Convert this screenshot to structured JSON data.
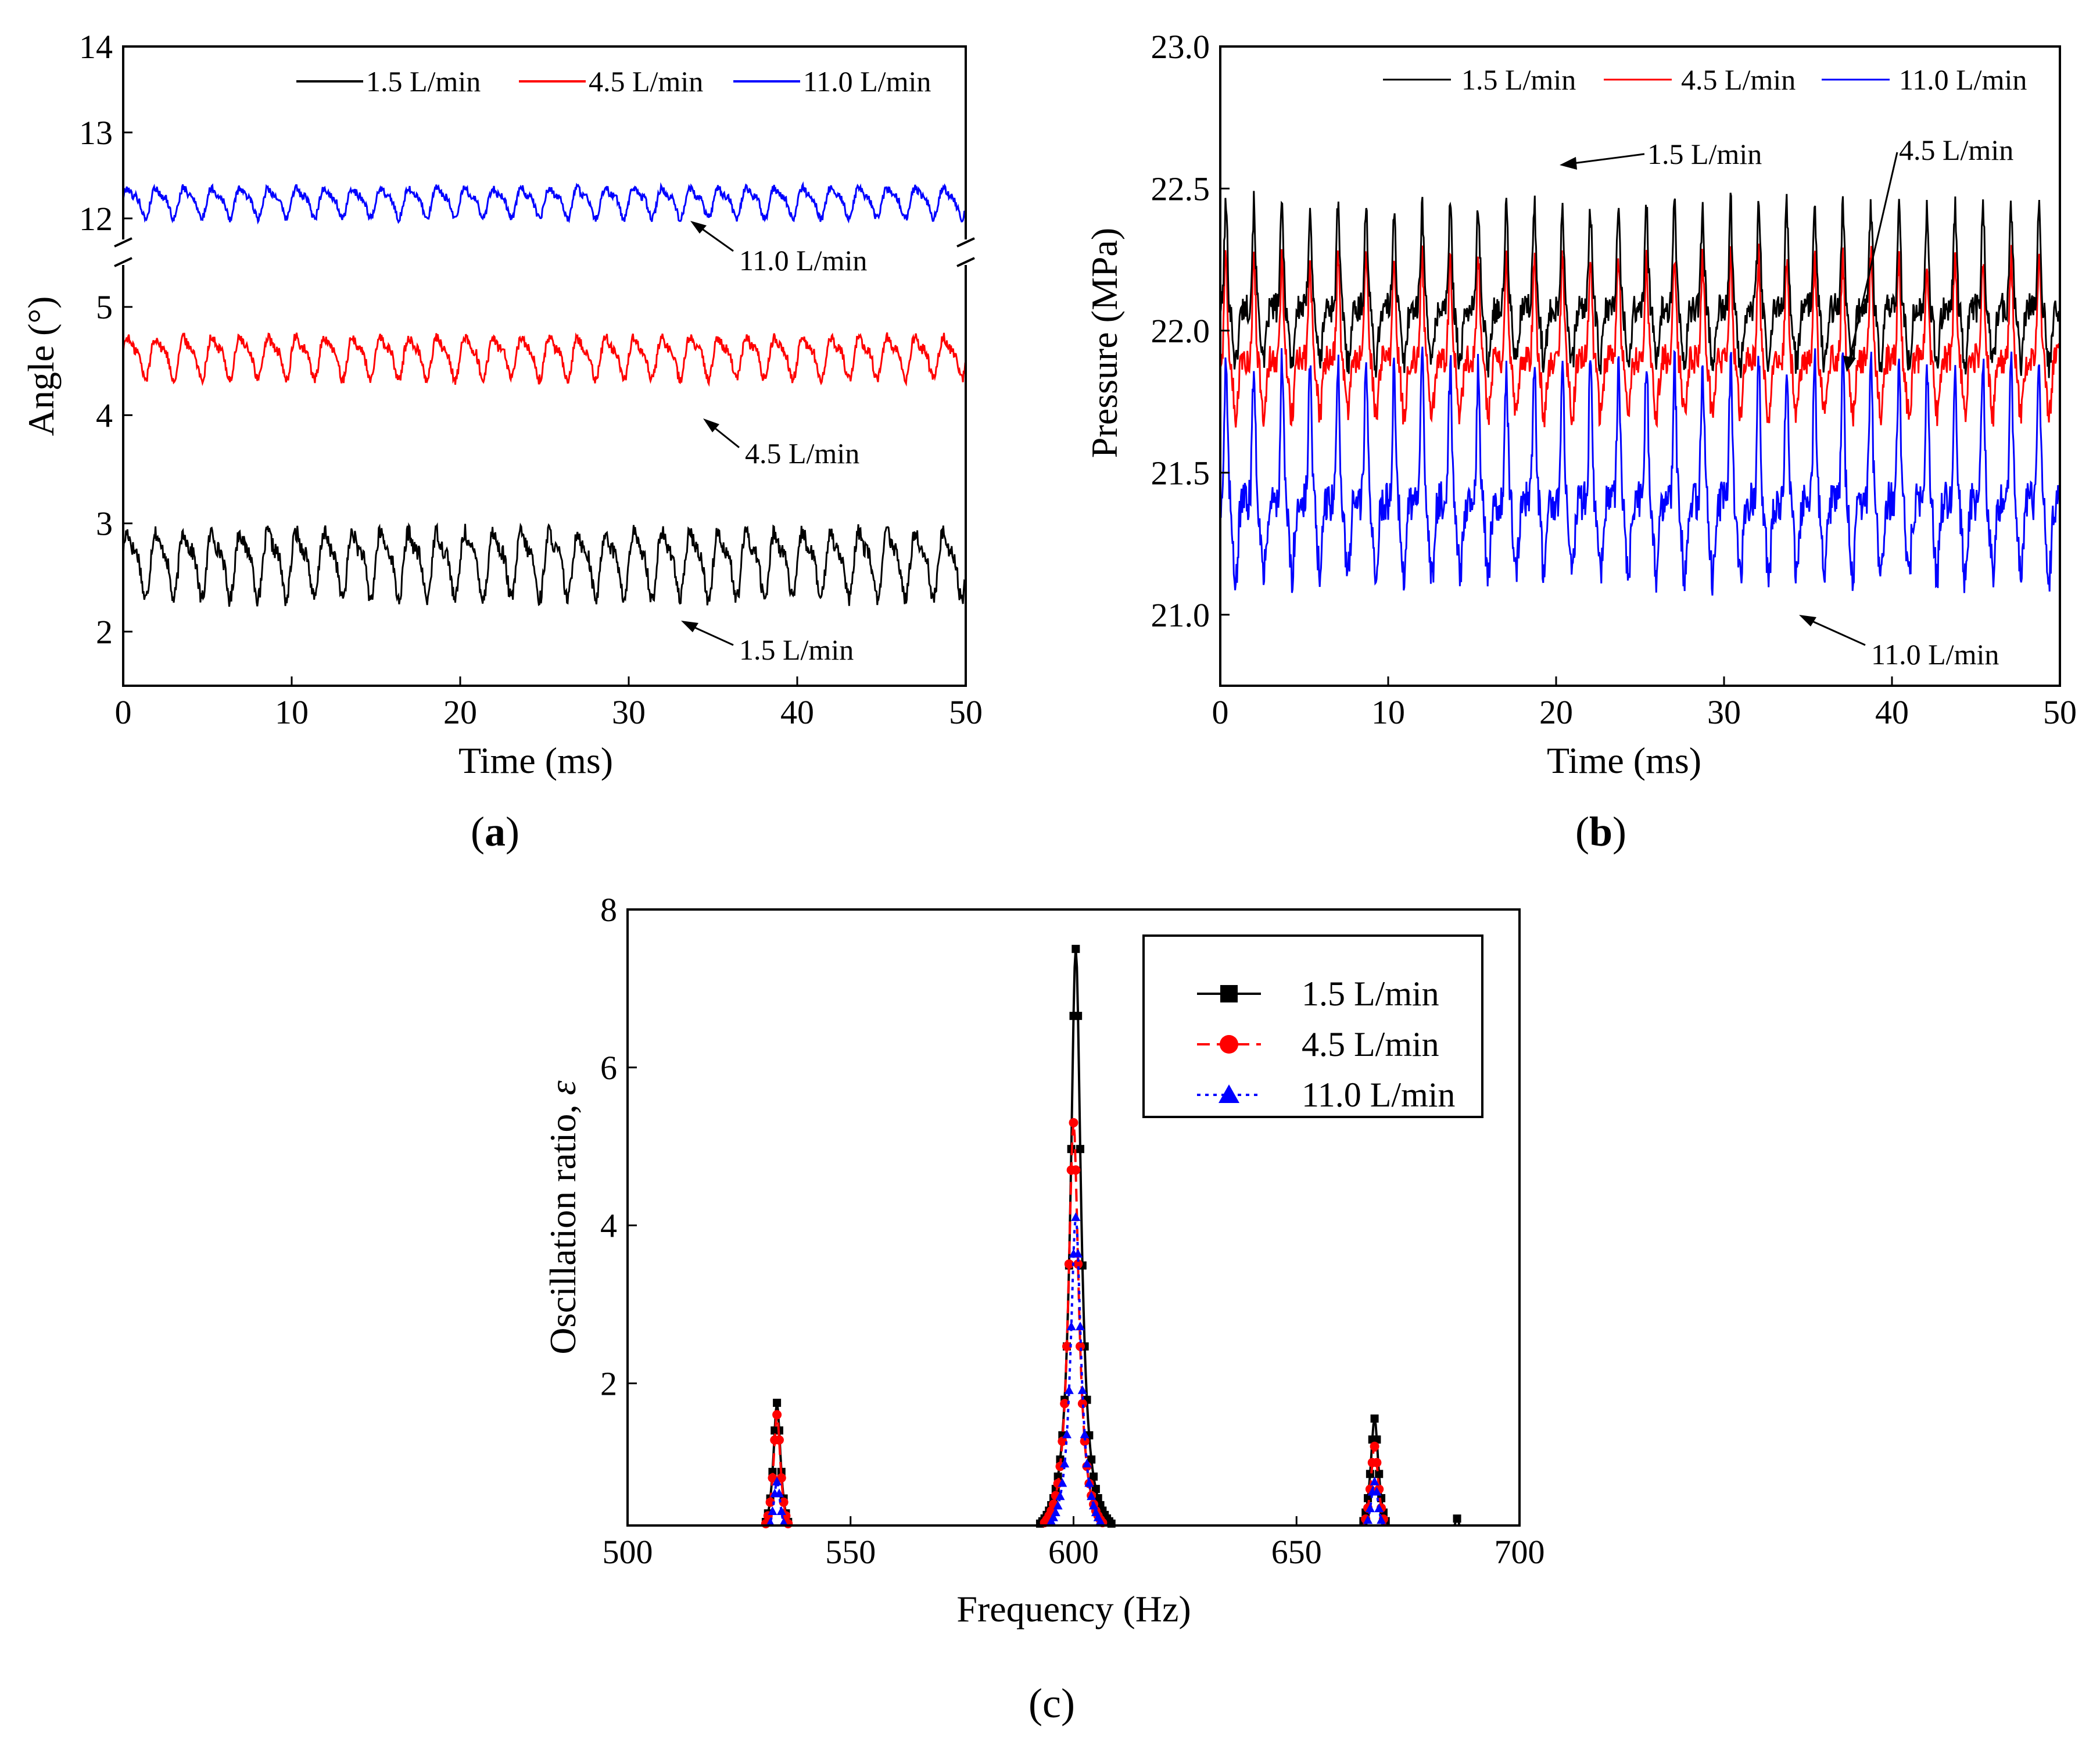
{
  "chart_data": [
    {
      "id": "a",
      "type": "line",
      "caption": "a",
      "xlabel": "Time (ms)",
      "ylabel": "Angle (°)",
      "xlim": [
        0,
        50
      ],
      "xticks": [
        0,
        10,
        20,
        30,
        40,
        50
      ],
      "axis_break": true,
      "lower_ylim": [
        1.5,
        5.5
      ],
      "lower_yticks": [
        2,
        3,
        4,
        5
      ],
      "upper_ylim": [
        11.6,
        14
      ],
      "upper_yticks": [
        12,
        13,
        14
      ],
      "legend": [
        "1.5 L/min",
        "4.5 L/min",
        "11.0 L/min"
      ],
      "series": [
        {
          "name": "1.5 L/min",
          "color": "#000000",
          "mean": 2.65,
          "amplitude": 0.35,
          "period_ms": 1.67
        },
        {
          "name": "4.5 L/min",
          "color": "#ff0000",
          "mean": 4.55,
          "amplitude": 0.22,
          "period_ms": 1.67
        },
        {
          "name": "11.0 L/min",
          "color": "#0000ff",
          "mean": 12.2,
          "amplitude": 0.2,
          "period_ms": 1.67
        }
      ],
      "annotations": [
        {
          "text": "11.0 L/min",
          "x": 33.5,
          "y": 11.95
        },
        {
          "text": "4.5 L/min",
          "x": 34,
          "y": 4.35
        },
        {
          "text": "1.5 L/min",
          "x": 33,
          "y": 2.2
        }
      ]
    },
    {
      "id": "b",
      "type": "line",
      "caption": "b",
      "xlabel": "Time (ms)",
      "ylabel": "Pressure (MPa)",
      "xlim": [
        0,
        50
      ],
      "xticks": [
        0,
        10,
        20,
        30,
        40,
        50
      ],
      "ylim": [
        20.75,
        23.0
      ],
      "yticks": [
        "21.0",
        "21.5",
        "22.0",
        "22.5",
        "23.0"
      ],
      "legend": [
        "1.5 L/min",
        "4.5 L/min",
        "11.0 L/min"
      ],
      "series": [
        {
          "name": "1.5 L/min",
          "color": "#000000",
          "mean": 22.08,
          "amplitude": 0.3,
          "period_ms": 1.67
        },
        {
          "name": "4.5 L/min",
          "color": "#ff0000",
          "mean": 21.9,
          "amplitude": 0.3,
          "period_ms": 1.67
        },
        {
          "name": "11.0 L/min",
          "color": "#0000ff",
          "mean": 21.4,
          "amplitude": 0.4,
          "period_ms": 1.67
        }
      ],
      "annotations": [
        {
          "text": "1.5 L/min",
          "x": 20,
          "y": 22.6
        },
        {
          "text": "4.5 L/min",
          "x": 37,
          "y": 21.85
        },
        {
          "text": "11.0 L/min",
          "x": 34,
          "y": 21.0
        }
      ]
    },
    {
      "id": "c",
      "type": "line",
      "caption": "c",
      "xlabel": "Frequency (Hz)",
      "ylabel": "Oscillation ratio, ",
      "ylabel_symbol": "ε",
      "xlim": [
        500,
        700
      ],
      "xticks": [
        500,
        550,
        600,
        650,
        700
      ],
      "ylim": [
        0.2,
        8
      ],
      "yticks": [
        2,
        4,
        6,
        8
      ],
      "legend": [
        "1.5 L/min",
        "4.5 L/min",
        "11.0 L/min"
      ],
      "series": [
        {
          "name": "1.5 L/min",
          "color": "#000000",
          "line": "solid",
          "marker": "square",
          "peaks": [
            [
              533.5,
              1.75
            ],
            [
              600.5,
              7.5
            ],
            [
              667.5,
              1.55
            ],
            [
              686,
              0.28
            ]
          ]
        },
        {
          "name": "4.5 L/min",
          "color": "#ff0000",
          "line": "dashed",
          "marker": "circle",
          "peaks": [
            [
              533.5,
              1.6
            ],
            [
              600,
              5.3
            ],
            [
              667.5,
              1.2
            ]
          ]
        },
        {
          "name": "11.0 L/min",
          "color": "#0000ff",
          "line": "dotted",
          "marker": "triangle",
          "peaks": [
            [
              533.5,
              0.75
            ],
            [
              600.5,
              4.1
            ],
            [
              667.5,
              0.75
            ]
          ]
        }
      ]
    }
  ]
}
